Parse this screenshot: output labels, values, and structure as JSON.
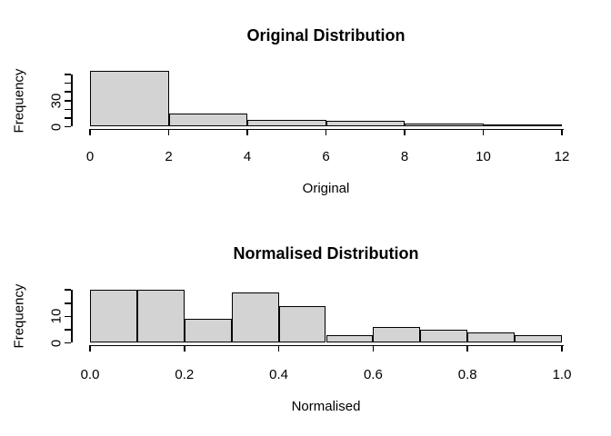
{
  "chart_data": [
    {
      "type": "bar",
      "subtype": "histogram",
      "title": "Original Distribution",
      "xlabel": "Original",
      "ylabel": "Frequency",
      "bin_edges": [
        0,
        2,
        4,
        6,
        8,
        10,
        12
      ],
      "counts": [
        64,
        15,
        8,
        7,
        4,
        3
      ],
      "xlim": [
        0,
        12
      ],
      "ylim": [
        0,
        64
      ],
      "x_ticks": [
        0,
        2,
        4,
        6,
        8,
        10,
        12
      ],
      "x_tick_labels": [
        "0",
        "2",
        "4",
        "6",
        "8",
        "10",
        "12"
      ],
      "y_ticks": [
        0,
        10,
        20,
        30,
        40,
        50,
        60
      ],
      "y_tick_labels_shown": {
        "0": "0",
        "30": "30"
      },
      "bar_fill": "#d3d3d3",
      "bar_border": "#000000",
      "grid": "off",
      "legend": "none"
    },
    {
      "type": "bar",
      "subtype": "histogram",
      "title": "Normalised Distribution",
      "xlabel": "Normalised",
      "ylabel": "Frequency",
      "bin_edges": [
        0,
        0.1,
        0.2,
        0.3,
        0.4,
        0.5,
        0.6,
        0.7,
        0.8,
        0.9,
        1.0
      ],
      "counts": [
        20,
        20,
        9,
        19,
        14,
        3,
        6,
        5,
        4,
        3
      ],
      "xlim": [
        0,
        1
      ],
      "ylim": [
        0,
        20
      ],
      "x_ticks": [
        0,
        0.2,
        0.4,
        0.6,
        0.8,
        1.0
      ],
      "x_tick_labels": [
        "0.0",
        "0.2",
        "0.4",
        "0.6",
        "0.8",
        "1.0"
      ],
      "y_ticks": [
        0,
        5,
        10,
        15,
        20
      ],
      "y_tick_labels_shown": {
        "0": "0",
        "10": "10"
      },
      "bar_fill": "#d3d3d3",
      "bar_border": "#000000",
      "grid": "off",
      "legend": "none"
    }
  ],
  "colors": {
    "background": "#ffffff",
    "axis": "#000000",
    "text": "#000000",
    "bar_fill": "#d3d3d3"
  }
}
